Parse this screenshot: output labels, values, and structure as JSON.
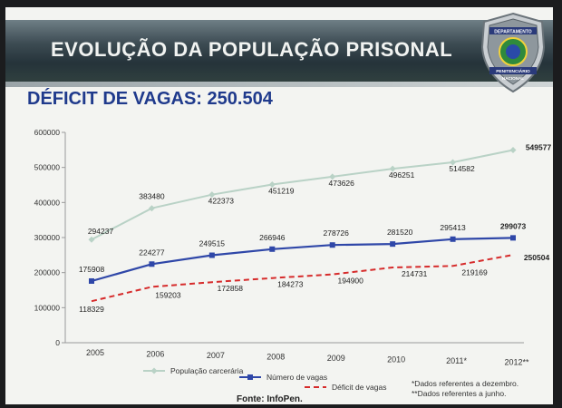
{
  "header": {
    "title": "EVOLUÇÃO DA POPULAÇÃO PRISONAL",
    "subtitle": "DÉFICIT DE VAGAS: 250.504",
    "badge": {
      "top": "DEPARTAMENTO",
      "bottom1": "PENITENCIÁRIO",
      "bottom2": "NACIONAL"
    }
  },
  "notes": [
    "*Dados referentes a dezembro.",
    "**Dados referentes a junho."
  ],
  "source": "Fonte: InfoPen.",
  "chart_data": {
    "type": "line",
    "title": "",
    "xlabel": "",
    "ylabel": "",
    "ylim": [
      0,
      600000
    ],
    "yticks": [
      "0",
      "100000",
      "200000",
      "300000",
      "400000",
      "500000",
      "600000"
    ],
    "categories": [
      "2005",
      "2006",
      "2007",
      "2008",
      "2009",
      "2010",
      "2011*",
      "2012**"
    ],
    "series": [
      {
        "name": "População carcerária",
        "color": "#b9d2c6",
        "marker": "diamond",
        "values": [
          294237,
          383480,
          422373,
          451219,
          473626,
          496251,
          514582,
          549577
        ],
        "labels": [
          "294237",
          "383480",
          "422373",
          "451219",
          "473626",
          "496251",
          "514582",
          "549577"
        ]
      },
      {
        "name": "Número de vagas",
        "color": "#2f47a8",
        "marker": "square",
        "values": [
          175908,
          224277,
          249515,
          266946,
          278726,
          281520,
          295413,
          299073
        ],
        "labels": [
          "175908",
          "224277",
          "249515",
          "266946",
          "278726",
          "281520",
          "295413",
          "299073"
        ]
      },
      {
        "name": "Déficit de vagas",
        "color": "#d62b2b",
        "marker": "dash",
        "values": [
          118329,
          159203,
          172858,
          184273,
          194900,
          214731,
          219169,
          250504
        ],
        "labels": [
          "118329",
          "159203",
          "172858",
          "184273",
          "194900",
          "214731",
          "219169",
          "250504"
        ]
      }
    ],
    "legend": "bottom"
  }
}
